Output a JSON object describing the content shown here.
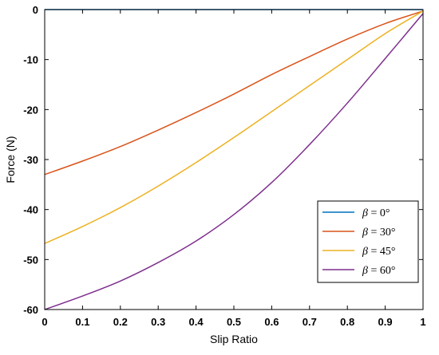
{
  "chart_data": {
    "type": "line",
    "title": "",
    "xlabel": "Slip Ratio",
    "ylabel": "Force (N)",
    "xlim": [
      0,
      1
    ],
    "ylim": [
      -60,
      0
    ],
    "xticks": [
      0,
      0.1,
      0.2,
      0.3,
      0.4,
      0.5,
      0.6,
      0.7,
      0.8,
      0.9,
      1
    ],
    "xtick_labels": [
      "0",
      "0.1",
      "0.2",
      "0.3",
      "0.4",
      "0.5",
      "0.6",
      "0.7",
      "0.8",
      "0.9",
      "1"
    ],
    "yticks": [
      0,
      -10,
      -20,
      -30,
      -40,
      -50,
      -60
    ],
    "ytick_labels": [
      "0",
      "-10",
      "-20",
      "-30",
      "-40",
      "-50",
      "-60"
    ],
    "grid": false,
    "legend_position": "bottom-right",
    "x": [
      0,
      0.1,
      0.2,
      0.3,
      0.4,
      0.5,
      0.6,
      0.7,
      0.8,
      0.9,
      1
    ],
    "series": [
      {
        "name": "β = 0°",
        "symbol": "β",
        "suffix": " = 0°",
        "color": "#0072BD",
        "values": [
          0,
          0,
          0,
          0,
          0,
          0,
          0,
          0,
          0,
          0,
          0
        ]
      },
      {
        "name": "β = 30°",
        "symbol": "β",
        "suffix": " = 30°",
        "color": "#D95319",
        "values": [
          -33.0,
          -30.3,
          -27.4,
          -24.1,
          -20.6,
          -16.9,
          -13.0,
          -9.4,
          -5.9,
          -2.8,
          -0.3
        ]
      },
      {
        "name": "β = 45°",
        "symbol": "β",
        "suffix": " = 45°",
        "color": "#EDB120",
        "values": [
          -46.8,
          -43.4,
          -39.6,
          -35.3,
          -30.6,
          -25.6,
          -20.4,
          -15.2,
          -10.0,
          -4.8,
          -0.3
        ]
      },
      {
        "name": "β = 60°",
        "symbol": "β",
        "suffix": " = 60°",
        "color": "#7E2F8E",
        "values": [
          -60.0,
          -57.3,
          -54.3,
          -50.6,
          -46.3,
          -41.0,
          -34.6,
          -27.0,
          -18.7,
          -9.8,
          -0.8
        ]
      }
    ]
  }
}
